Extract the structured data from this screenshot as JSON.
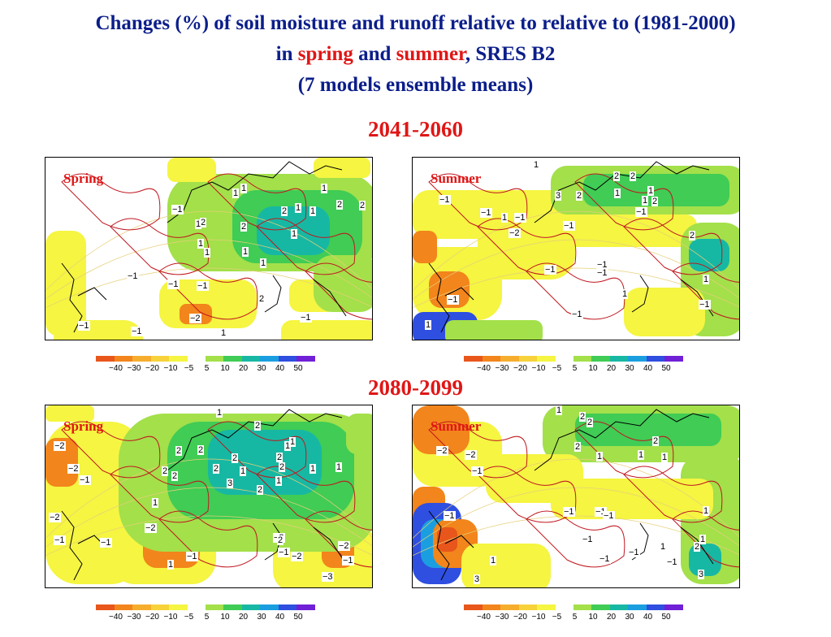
{
  "title": {
    "line1": "Changes (%) of soil moisture and runoff relative to relative to (1981-2000)",
    "line2_pre": "in ",
    "line2_spring": "spring",
    "line2_mid": " and ",
    "line2_summer": "summer",
    "line2_post": ", SRES B2",
    "line3": "(7 models ensemble means)"
  },
  "periods": [
    "2041-2060",
    "2080-2099"
  ],
  "colors": {
    "title": "#0b1e8a",
    "highlight": "#e01616",
    "contour": "#c0171f",
    "coast": "#000000"
  },
  "legend": {
    "colors": [
      "#e8561b",
      "#f2851b",
      "#f6ad2e",
      "#f7d23b",
      "#f5f542",
      "#ffffff",
      "#a3e04a",
      "#40cc55",
      "#17b8a3",
      "#1b9ee0",
      "#2e4fe0",
      "#7020d6"
    ],
    "ticks": [
      "−40",
      "−30",
      "−20",
      "−10",
      "−5",
      "5",
      "10",
      "20",
      "30",
      "40",
      "50"
    ]
  },
  "maps": [
    {
      "season": "Spring",
      "labels": [
        "1",
        "1",
        "2",
        "1",
        "1",
        "1",
        "1",
        "2",
        "1",
        "1",
        "2",
        "2",
        "2",
        "2",
        "−1",
        "1",
        "1",
        "1",
        "−1",
        "−1",
        "−1",
        "−2",
        "−1",
        "1",
        "−1",
        "−1"
      ]
    },
    {
      "season": "Summer",
      "labels": [
        "1",
        "2",
        "2",
        "3",
        "2",
        "1",
        "1",
        "−1",
        "−1",
        "1",
        "−1",
        "−1",
        "−1",
        "−2",
        "−1",
        "−1",
        "1",
        "−1",
        "−1",
        "−1",
        "1",
        "−1",
        "1",
        "1",
        "2",
        "2"
      ]
    },
    {
      "season": "Spring",
      "labels": [
        "1",
        "2",
        "2",
        "2",
        "2",
        "2",
        "2",
        "2",
        "1",
        "1",
        "2",
        "1",
        "3",
        "2",
        "2",
        "1",
        "1",
        "1",
        "−2",
        "−2",
        "−1",
        "−2",
        "−1",
        "−1",
        "−2",
        "−1",
        "−2",
        "2",
        "−2",
        "−1",
        "−3",
        "−2",
        "−1",
        "1",
        "1"
      ]
    },
    {
      "season": "Summer",
      "labels": [
        "1",
        "2",
        "2",
        "2",
        "1",
        "1",
        "1",
        "2",
        "−2",
        "−2",
        "−1",
        "−1",
        "−1",
        "−1",
        "−1",
        "−1",
        "−1",
        "1",
        "−1",
        "−1",
        "2",
        "3",
        "1",
        "3",
        "1",
        "1"
      ]
    }
  ]
}
